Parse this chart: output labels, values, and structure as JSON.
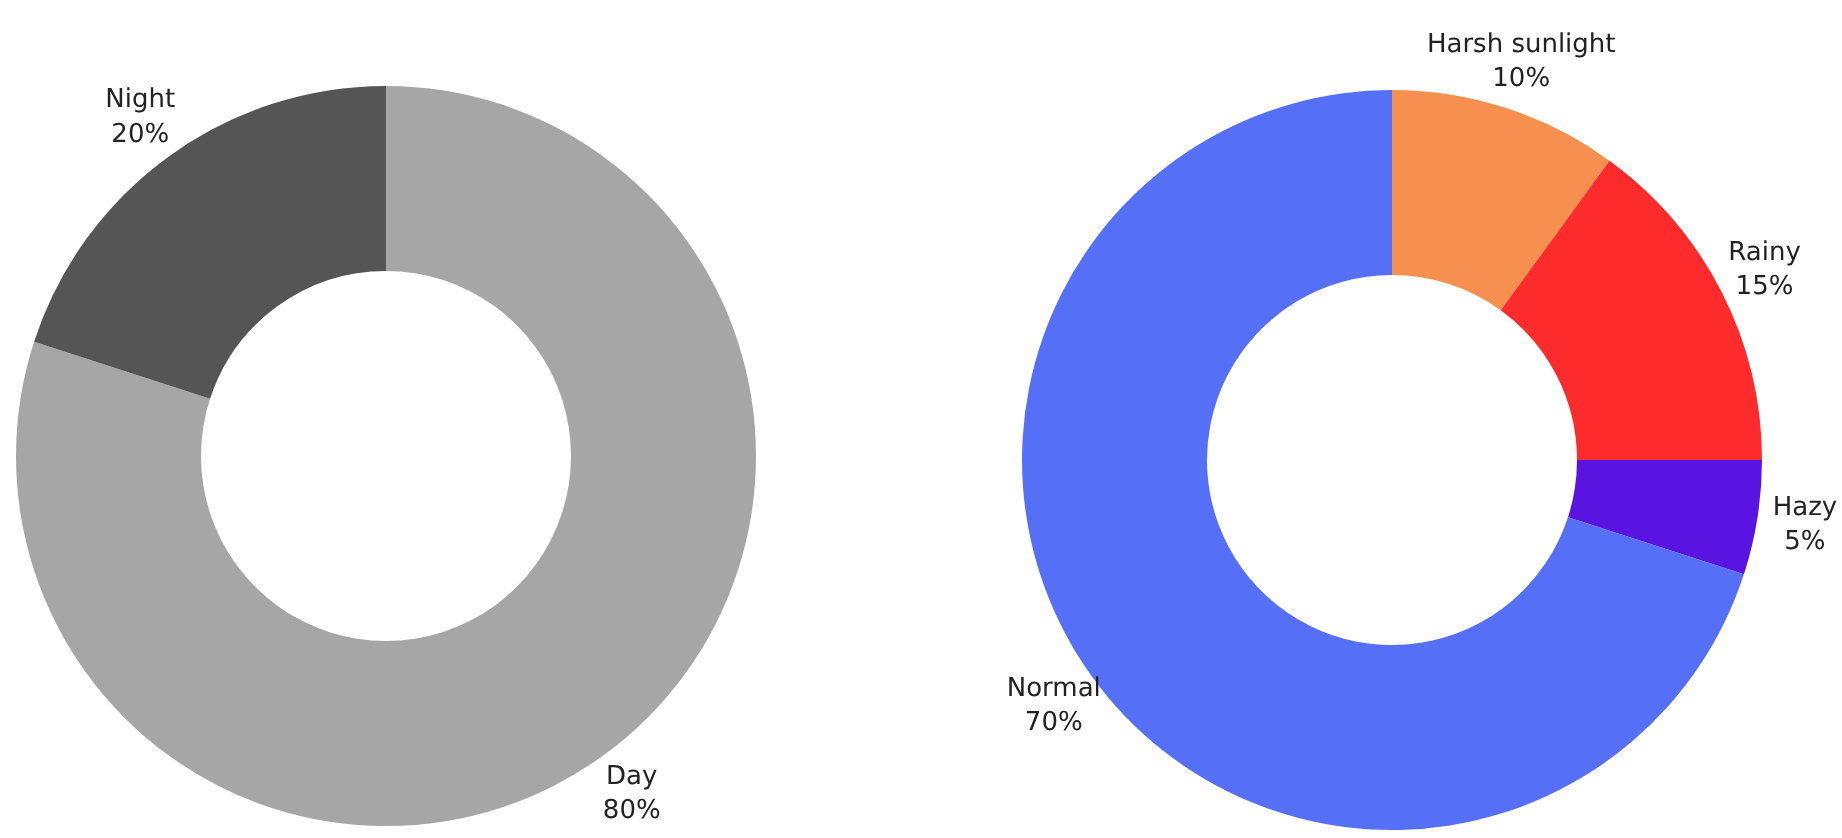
{
  "chart_data": [
    {
      "type": "donut",
      "categories": [
        "Day",
        "Night"
      ],
      "values": [
        80,
        20
      ],
      "colors": [
        "#a6a6a6",
        "#555555"
      ],
      "value_labels": [
        "80%",
        "20%"
      ]
    },
    {
      "type": "donut",
      "categories": [
        "Harsh sunlight",
        "Rainy",
        "Hazy",
        "Normal"
      ],
      "values": [
        10,
        15,
        5,
        70
      ],
      "colors": [
        "#f78f4e",
        "#fd2b2b",
        "#5a14e2",
        "#5570f6"
      ],
      "value_labels": [
        "10%",
        "15%",
        "5%",
        "70%"
      ]
    }
  ]
}
